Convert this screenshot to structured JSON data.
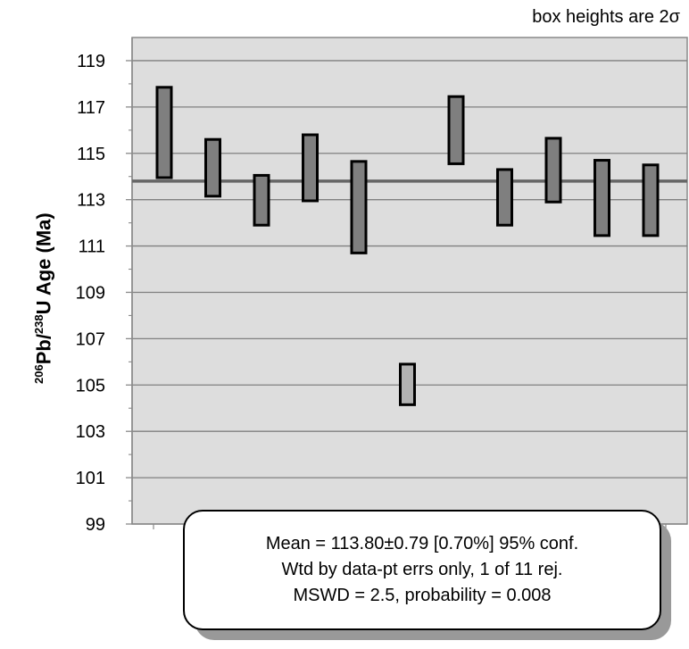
{
  "note": "box heights are 2σ",
  "ylabel": {
    "mass1": "206",
    "elem1": "Pb/",
    "mass2": "238",
    "elem2": "U Age (Ma)"
  },
  "stats": {
    "line1": "Mean = 113.80±0.79  [0.70%]  95% conf.",
    "line2": "Wtd by data-pt errs only, 1 of 11 rej.",
    "line3": "MSWD = 2.5, probability = 0.008"
  },
  "colors": {
    "box_fill": "#7f7f7f",
    "rejected_fill": "#b2b2b2",
    "box_stroke": "#000000",
    "grid": "#808080",
    "mean_line": "#666666"
  },
  "chart_data": {
    "type": "box-error-bar",
    "ylabel": "206Pb/238U Age (Ma)",
    "ylim": [
      99,
      120
    ],
    "yticks": [
      99,
      101,
      103,
      105,
      107,
      109,
      111,
      113,
      115,
      117,
      119
    ],
    "grid": true,
    "mean": 113.8,
    "boxes": [
      {
        "low": 113.95,
        "high": 117.85,
        "rejected": false
      },
      {
        "low": 113.15,
        "high": 115.6,
        "rejected": false
      },
      {
        "low": 111.9,
        "high": 114.05,
        "rejected": false
      },
      {
        "low": 112.95,
        "high": 115.8,
        "rejected": false
      },
      {
        "low": 110.7,
        "high": 114.65,
        "rejected": false
      },
      {
        "low": 104.15,
        "high": 105.9,
        "rejected": true
      },
      {
        "low": 114.55,
        "high": 117.45,
        "rejected": false
      },
      {
        "low": 111.9,
        "high": 114.3,
        "rejected": false
      },
      {
        "low": 112.9,
        "high": 115.65,
        "rejected": false
      },
      {
        "low": 111.45,
        "high": 114.7,
        "rejected": false
      },
      {
        "low": 111.45,
        "high": 114.5,
        "rejected": false
      }
    ]
  }
}
